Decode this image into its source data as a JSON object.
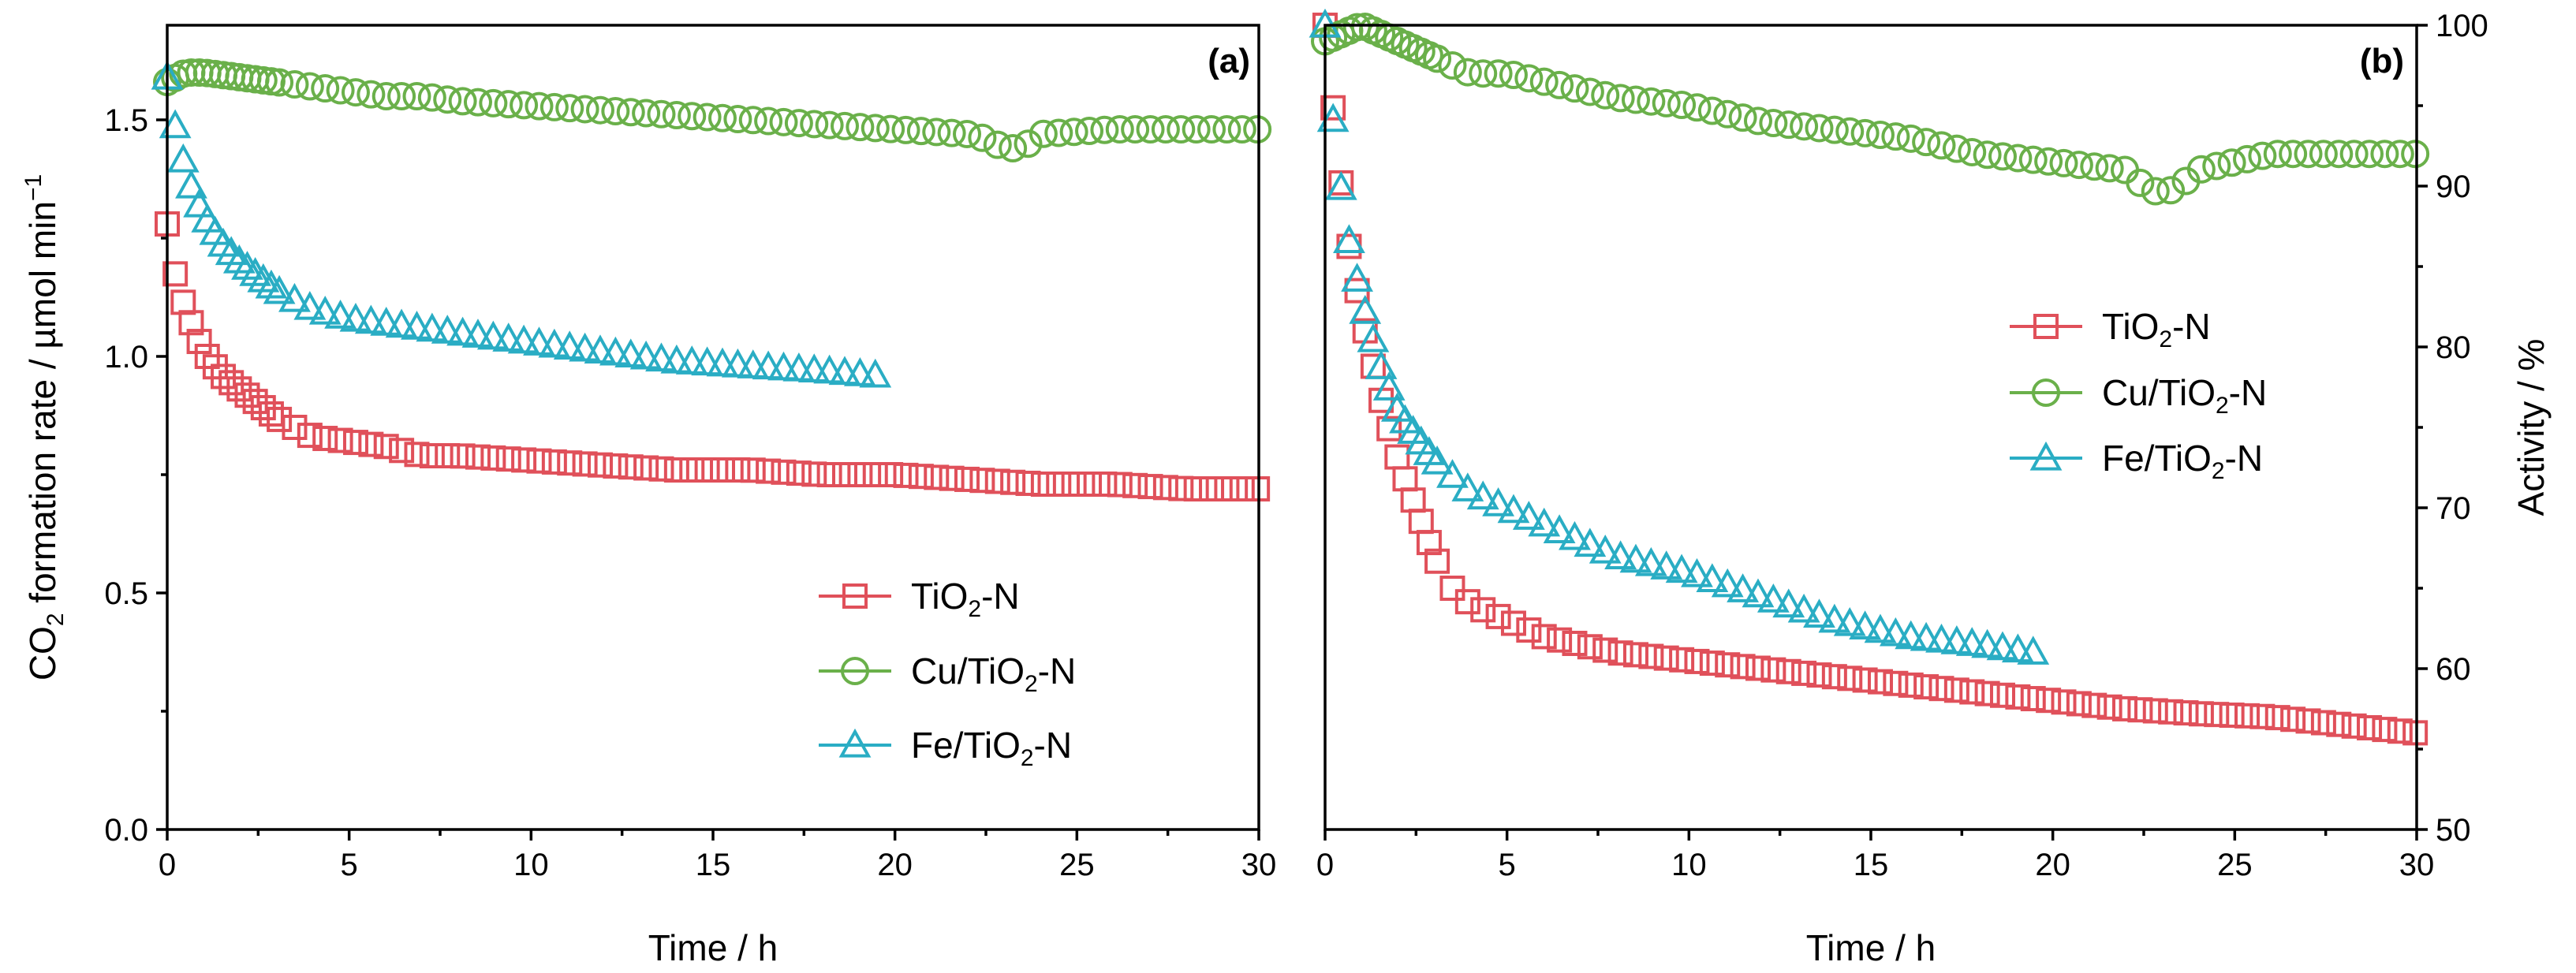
{
  "colors": {
    "tio2n": "#e0505a",
    "cutio2n": "#6ab04a",
    "fetio2n": "#2aadc4"
  },
  "chart_data": [
    {
      "type": "scatter",
      "panel_label": "(a)",
      "xlabel": "Time / h",
      "ylabel": {
        "main": "CO",
        "sub": "2",
        "rest": " formation rate / µmol min",
        "sup": "−1"
      },
      "xlim": [
        0,
        30
      ],
      "ylim": [
        0,
        1.7
      ],
      "xticks": [
        "0",
        "5",
        "10",
        "15",
        "20",
        "25",
        "30"
      ],
      "yticks": [
        "0.0",
        "0.5",
        "1.0",
        "1.5"
      ],
      "legend_position": "lower-right",
      "series": [
        {
          "name": "TiO2-N",
          "label_main": "TiO",
          "label_sub": "2",
          "label_rest": "-N",
          "marker": "square",
          "color": "#e0505a",
          "points": [
            [
              0,
              1.28
            ],
            [
              0.25,
              1.16
            ],
            [
              0.5,
              1.1
            ],
            [
              1,
              1.01
            ],
            [
              1.5,
              0.96
            ],
            [
              2,
              0.93
            ],
            [
              2.5,
              0.9
            ],
            [
              3,
              0.87
            ],
            [
              3.5,
              0.85
            ],
            [
              4,
              0.83
            ],
            [
              5,
              0.82
            ],
            [
              6,
              0.81
            ],
            [
              7,
              0.79
            ],
            [
              8,
              0.79
            ],
            [
              10,
              0.78
            ],
            [
              12,
              0.77
            ],
            [
              14,
              0.76
            ],
            [
              16,
              0.76
            ],
            [
              18,
              0.75
            ],
            [
              20,
              0.75
            ],
            [
              22,
              0.74
            ],
            [
              24,
              0.73
            ],
            [
              26,
              0.73
            ],
            [
              28,
              0.72
            ],
            [
              30,
              0.72
            ]
          ]
        },
        {
          "name": "Cu/TiO2-N",
          "label_main": "Cu/TiO",
          "label_sub": "2",
          "label_rest": "-N",
          "marker": "circle",
          "color": "#6ab04a",
          "points": [
            [
              0,
              1.58
            ],
            [
              0.5,
              1.6
            ],
            [
              1,
              1.6
            ],
            [
              2,
              1.59
            ],
            [
              3,
              1.58
            ],
            [
              4,
              1.57
            ],
            [
              5,
              1.56
            ],
            [
              6,
              1.55
            ],
            [
              7,
              1.55
            ],
            [
              8,
              1.54
            ],
            [
              10,
              1.53
            ],
            [
              12,
              1.52
            ],
            [
              14,
              1.51
            ],
            [
              16,
              1.5
            ],
            [
              18,
              1.49
            ],
            [
              20,
              1.48
            ],
            [
              22,
              1.47
            ],
            [
              22.5,
              1.46
            ],
            [
              23,
              1.44
            ],
            [
              23.5,
              1.44
            ],
            [
              24,
              1.47
            ],
            [
              26,
              1.48
            ],
            [
              28,
              1.48
            ],
            [
              30,
              1.48
            ]
          ]
        },
        {
          "name": "Fe/TiO2-N",
          "label_main": "Fe/TiO",
          "label_sub": "2",
          "label_rest": "-N",
          "marker": "triangle",
          "color": "#2aadc4",
          "points": [
            [
              0,
              1.59
            ],
            [
              0.3,
              1.45
            ],
            [
              0.7,
              1.35
            ],
            [
              1,
              1.3
            ],
            [
              1.5,
              1.24
            ],
            [
              2,
              1.2
            ],
            [
              3,
              1.14
            ],
            [
              4,
              1.1
            ],
            [
              5,
              1.08
            ],
            [
              6,
              1.07
            ],
            [
              8,
              1.05
            ],
            [
              10,
              1.03
            ],
            [
              12,
              1.01
            ],
            [
              14,
              0.99
            ],
            [
              16,
              0.98
            ],
            [
              18,
              0.97
            ],
            [
              19.5,
              0.96
            ]
          ]
        }
      ]
    },
    {
      "type": "scatter",
      "panel_label": "(b)",
      "xlabel": "Time / h",
      "ylabel": "Activity / %",
      "xlim": [
        0,
        30
      ],
      "ylim": [
        50,
        100
      ],
      "xticks": [
        "0",
        "5",
        "10",
        "15",
        "20",
        "25",
        "30"
      ],
      "yticks": [
        "50",
        "60",
        "70",
        "80",
        "90",
        "100"
      ],
      "yaxis_side": "right",
      "legend_position": "center",
      "series": [
        {
          "name": "TiO2-N",
          "label_main": "TiO",
          "label_sub": "2",
          "label_rest": "-N",
          "marker": "square",
          "color": "#e0505a",
          "points": [
            [
              0,
              100
            ],
            [
              0.3,
              93
            ],
            [
              0.6,
              87
            ],
            [
              1,
              82
            ],
            [
              1.5,
              77
            ],
            [
              2,
              73
            ],
            [
              2.5,
              70
            ],
            [
              3,
              67
            ],
            [
              3.5,
              65
            ],
            [
              4,
              64
            ],
            [
              5,
              63
            ],
            [
              6,
              62
            ],
            [
              7,
              61.5
            ],
            [
              8,
              61
            ],
            [
              10,
              60.5
            ],
            [
              12,
              60
            ],
            [
              14,
              59.5
            ],
            [
              16,
              59
            ],
            [
              18,
              58.5
            ],
            [
              20,
              58
            ],
            [
              22,
              57.5
            ],
            [
              24,
              57.2
            ],
            [
              26,
              57
            ],
            [
              28,
              56.5
            ],
            [
              30,
              56
            ]
          ]
        },
        {
          "name": "Cu/TiO2-N",
          "label_main": "Cu/TiO",
          "label_sub": "2",
          "label_rest": "-N",
          "marker": "circle",
          "color": "#6ab04a",
          "points": [
            [
              0,
              99
            ],
            [
              0.5,
              99.5
            ],
            [
              1,
              100
            ],
            [
              2,
              99
            ],
            [
              3,
              98
            ],
            [
              4,
              97
            ],
            [
              5,
              97
            ],
            [
              6,
              96.5
            ],
            [
              7,
              96
            ],
            [
              8,
              95.5
            ],
            [
              10,
              95
            ],
            [
              12,
              94
            ],
            [
              14,
              93.5
            ],
            [
              16,
              93
            ],
            [
              18,
              92
            ],
            [
              20,
              91.5
            ],
            [
              22,
              91
            ],
            [
              22.5,
              90
            ],
            [
              23,
              89.5
            ],
            [
              23.5,
              90
            ],
            [
              24,
              91
            ],
            [
              26,
              92
            ],
            [
              28,
              92
            ],
            [
              30,
              92
            ]
          ]
        },
        {
          "name": "Fe/TiO2-N",
          "label_main": "Fe/TiO",
          "label_sub": "2",
          "label_rest": "-N",
          "marker": "triangle",
          "color": "#2aadc4",
          "points": [
            [
              0,
              100
            ],
            [
              0.3,
              92
            ],
            [
              0.7,
              86
            ],
            [
              1,
              83
            ],
            [
              1.5,
              79
            ],
            [
              2,
              76
            ],
            [
              3,
              73
            ],
            [
              4,
              71
            ],
            [
              5,
              70
            ],
            [
              6,
              69
            ],
            [
              8,
              67
            ],
            [
              10,
              66
            ],
            [
              12,
              64.5
            ],
            [
              14,
              63
            ],
            [
              16,
              62
            ],
            [
              18,
              61.5
            ],
            [
              19.5,
              61
            ]
          ]
        }
      ]
    }
  ]
}
